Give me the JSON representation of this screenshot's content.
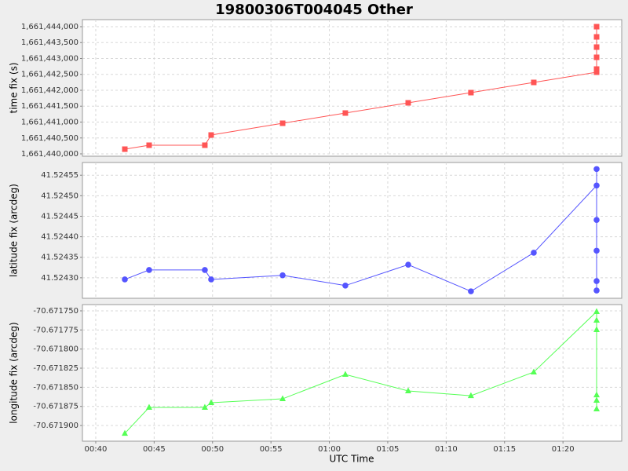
{
  "chart_data": {
    "type": "line",
    "title": "19800306T004045 Other",
    "xlabel": "UTC Time",
    "grid": true,
    "x": [
      42.49,
      44.57,
      49.34,
      49.88,
      56.0,
      61.37,
      66.75,
      72.12,
      77.5,
      82.88,
      82.88,
      82.88,
      82.88,
      82.88,
      82.88
    ],
    "xlim": [
      38.86,
      85.03
    ],
    "xticks": [
      {
        "value": 40,
        "label": "00:40"
      },
      {
        "value": 45,
        "label": "00:45"
      },
      {
        "value": 50,
        "label": "00:50"
      },
      {
        "value": 55,
        "label": "00:55"
      },
      {
        "value": 60,
        "label": "01:00"
      },
      {
        "value": 65,
        "label": "01:05"
      },
      {
        "value": 70,
        "label": "01:10"
      },
      {
        "value": 75,
        "label": "01:15"
      },
      {
        "value": 80,
        "label": "01:20"
      }
    ],
    "panels": [
      {
        "ylabel": "time fix (s)",
        "ylim": [
          1661439926,
          1661444222
        ],
        "yticks": [
          {
            "value": 1661440000,
            "label": "1,661,440,000"
          },
          {
            "value": 1661440500,
            "label": "1,661,440,500"
          },
          {
            "value": 1661441000,
            "label": "1,661,441,000"
          },
          {
            "value": 1661441500,
            "label": "1,661,441,500"
          },
          {
            "value": 1661442000,
            "label": "1,661,442,000"
          },
          {
            "value": 1661442500,
            "label": "1,661,442,500"
          },
          {
            "value": 1661443000,
            "label": "1,661,443,000"
          },
          {
            "value": 1661443500,
            "label": "1,661,443,500"
          },
          {
            "value": 1661444000,
            "label": "1,661,444,000"
          }
        ],
        "series": [
          {
            "color": "#ff5555",
            "marker": "square",
            "values": [
              1661440148,
              1661440272,
              1661440272,
              1661440593,
              1661440963,
              1661441284,
              1661441605,
              1661441926,
              1661442247,
              1661442568,
              1661442667,
              1661443037,
              1661443358,
              1661443679,
              1661444000
            ]
          }
        ]
      },
      {
        "ylabel": "latitude fix (arcdeg)",
        "ylim": [
          41.52425,
          41.524581
        ],
        "yticks": [
          {
            "value": 41.5243,
            "label": "41.52430"
          },
          41.52435,
          {
            "value": 41.5244,
            "label": "41.52440"
          },
          41.52445,
          {
            "value": 41.5245,
            "label": "41.52450"
          },
          41.52455
        ],
        "series": [
          {
            "color": "#5555ff",
            "marker": "circle",
            "values": [
              41.524296,
              41.524319,
              41.524319,
              41.524296,
              41.524306,
              41.524281,
              41.524332,
              41.524267,
              41.524361,
              41.524525,
              41.524565,
              41.524441,
              41.524366,
              41.524292,
              41.524269
            ]
          }
        ]
      },
      {
        "ylabel": "longitude fix (arcdeg)",
        "ylim": [
          -70.6719205,
          -70.6717418
        ],
        "yticks": [
          {
            "value": -70.6719,
            "label": "-70.671900"
          },
          -70.671875,
          {
            "value": -70.67185,
            "label": "-70.671850"
          },
          -70.671825,
          {
            "value": -70.6718,
            "label": "-70.671800"
          },
          -70.671775,
          {
            "value": -70.67175,
            "label": "-70.671750"
          }
        ],
        "series": [
          {
            "color": "#55ff55",
            "marker": "triangle",
            "values": [
              -70.6719103,
              -70.6718764,
              -70.6718764,
              -70.6718702,
              -70.6718651,
              -70.6718332,
              -70.6718548,
              -70.671861,
              -70.6718301,
              -70.671751,
              -70.6717623,
              -70.6717747,
              -70.67186,
              -70.6718671,
              -70.6718784
            ]
          }
        ]
      }
    ]
  }
}
